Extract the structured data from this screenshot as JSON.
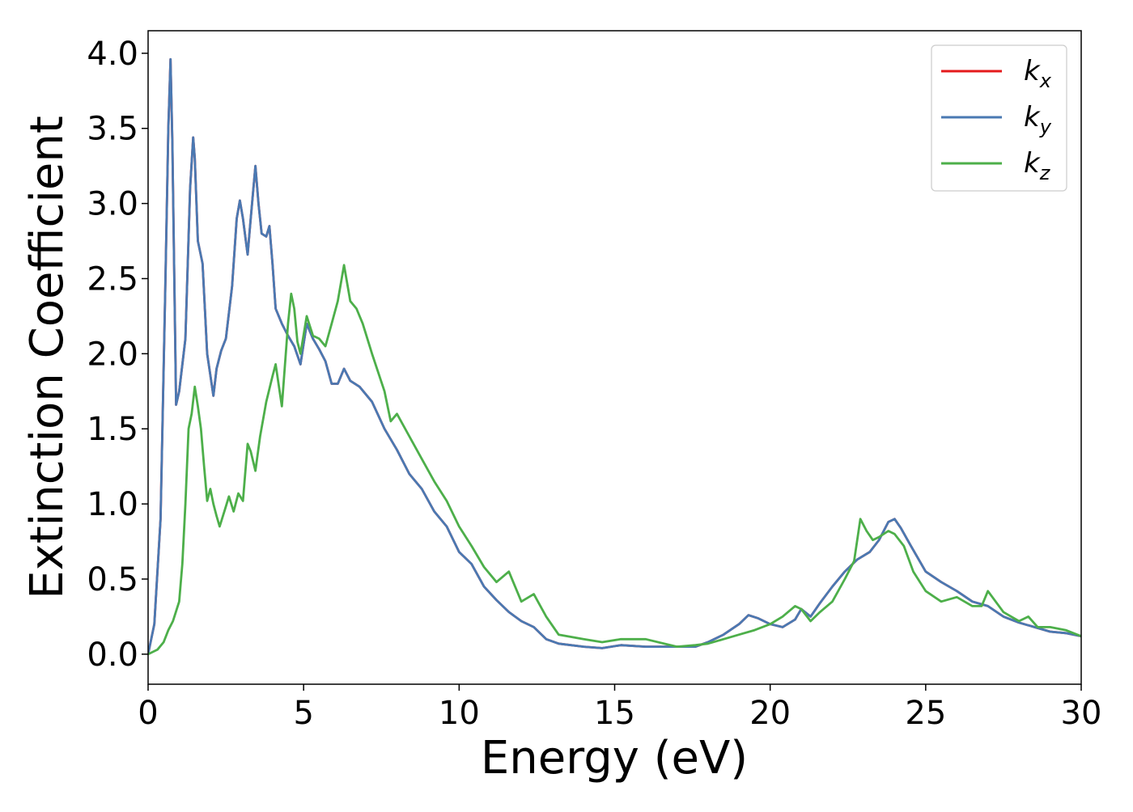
{
  "chart_data": {
    "type": "line",
    "xlabel": "Energy (eV)",
    "ylabel": "Extinction Coefficient",
    "xlim": [
      0,
      30
    ],
    "ylim": [
      -0.2,
      4.15
    ],
    "xticks": [
      0,
      5,
      10,
      15,
      20,
      25,
      30
    ],
    "yticks": [
      0.0,
      0.5,
      1.0,
      1.5,
      2.0,
      2.5,
      3.0,
      3.5,
      4.0
    ],
    "xtick_labels": [
      "0",
      "5",
      "10",
      "15",
      "20",
      "25",
      "30"
    ],
    "ytick_labels": [
      "0.0",
      "0.5",
      "1.0",
      "1.5",
      "2.0",
      "2.5",
      "3.0",
      "3.5",
      "4.0"
    ],
    "grid": false,
    "legend_position": "top-right",
    "series": [
      {
        "name": "k_x",
        "label_main": "k",
        "label_sub": "x",
        "color": "#e41a1c",
        "x": [
          0,
          0.2,
          0.4,
          0.55,
          0.65,
          0.72,
          0.78,
          0.9,
          1.0,
          1.2,
          1.35,
          1.45,
          1.5,
          1.6,
          1.75,
          1.9,
          2.1,
          2.2,
          2.35,
          2.5,
          2.7,
          2.85,
          2.95,
          3.05,
          3.2,
          3.3,
          3.45,
          3.55,
          3.65,
          3.8,
          3.9,
          4.0,
          4.1,
          4.3,
          4.5,
          4.7,
          4.9,
          5.1,
          5.3,
          5.5,
          5.7,
          5.9,
          6.1,
          6.3,
          6.5,
          6.8,
          7.2,
          7.6,
          8.0,
          8.4,
          8.8,
          9.2,
          9.6,
          10.0,
          10.4,
          10.8,
          11.2,
          11.6,
          12.0,
          12.4,
          12.8,
          13.2,
          14.0,
          14.6,
          15.2,
          16.0,
          17.0,
          17.6,
          18.0,
          18.5,
          19.0,
          19.3,
          19.6,
          20.0,
          20.4,
          20.8,
          21.0,
          21.3,
          21.6,
          22.0,
          22.4,
          22.8,
          23.2,
          23.5,
          23.8,
          24.0,
          24.2,
          24.5,
          25.0,
          25.5,
          26.0,
          26.5,
          27.0,
          27.5,
          28.0,
          28.5,
          29.0,
          29.5,
          30.0
        ],
        "y": [
          0.0,
          0.2,
          0.9,
          2.4,
          3.5,
          3.96,
          3.4,
          1.66,
          1.75,
          2.1,
          3.1,
          3.44,
          3.3,
          2.75,
          2.6,
          2.0,
          1.72,
          1.9,
          2.02,
          2.1,
          2.45,
          2.9,
          3.02,
          2.9,
          2.66,
          2.9,
          3.25,
          3.0,
          2.8,
          2.78,
          2.85,
          2.6,
          2.3,
          2.2,
          2.12,
          2.05,
          1.93,
          2.2,
          2.1,
          2.03,
          1.95,
          1.8,
          1.8,
          1.9,
          1.82,
          1.78,
          1.68,
          1.5,
          1.36,
          1.2,
          1.1,
          0.95,
          0.85,
          0.68,
          0.6,
          0.45,
          0.36,
          0.28,
          0.22,
          0.18,
          0.1,
          0.07,
          0.05,
          0.04,
          0.06,
          0.05,
          0.05,
          0.05,
          0.08,
          0.13,
          0.2,
          0.26,
          0.24,
          0.2,
          0.18,
          0.23,
          0.3,
          0.25,
          0.34,
          0.45,
          0.55,
          0.63,
          0.68,
          0.76,
          0.88,
          0.9,
          0.84,
          0.73,
          0.55,
          0.48,
          0.42,
          0.35,
          0.32,
          0.25,
          0.21,
          0.18,
          0.15,
          0.14,
          0.12
        ]
      },
      {
        "name": "k_y",
        "label_main": "k",
        "label_sub": "y",
        "color": "#4a79b2",
        "x": [
          0,
          0.2,
          0.4,
          0.55,
          0.65,
          0.72,
          0.78,
          0.9,
          1.0,
          1.2,
          1.35,
          1.45,
          1.5,
          1.6,
          1.75,
          1.9,
          2.1,
          2.2,
          2.35,
          2.5,
          2.7,
          2.85,
          2.95,
          3.05,
          3.2,
          3.3,
          3.45,
          3.55,
          3.65,
          3.8,
          3.9,
          4.0,
          4.1,
          4.3,
          4.5,
          4.7,
          4.9,
          5.1,
          5.3,
          5.5,
          5.7,
          5.9,
          6.1,
          6.3,
          6.5,
          6.8,
          7.2,
          7.6,
          8.0,
          8.4,
          8.8,
          9.2,
          9.6,
          10.0,
          10.4,
          10.8,
          11.2,
          11.6,
          12.0,
          12.4,
          12.8,
          13.2,
          14.0,
          14.6,
          15.2,
          16.0,
          17.0,
          17.6,
          18.0,
          18.5,
          19.0,
          19.3,
          19.6,
          20.0,
          20.4,
          20.8,
          21.0,
          21.3,
          21.6,
          22.0,
          22.4,
          22.8,
          23.2,
          23.5,
          23.8,
          24.0,
          24.2,
          24.5,
          25.0,
          25.5,
          26.0,
          26.5,
          27.0,
          27.5,
          28.0,
          28.5,
          29.0,
          29.5,
          30.0
        ],
        "y": [
          0.0,
          0.2,
          0.9,
          2.4,
          3.5,
          3.96,
          3.4,
          1.66,
          1.75,
          2.1,
          3.1,
          3.44,
          3.3,
          2.75,
          2.6,
          2.0,
          1.72,
          1.9,
          2.02,
          2.1,
          2.45,
          2.9,
          3.02,
          2.9,
          2.66,
          2.9,
          3.25,
          3.0,
          2.8,
          2.78,
          2.85,
          2.6,
          2.3,
          2.2,
          2.12,
          2.05,
          1.93,
          2.2,
          2.1,
          2.03,
          1.95,
          1.8,
          1.8,
          1.9,
          1.82,
          1.78,
          1.68,
          1.5,
          1.36,
          1.2,
          1.1,
          0.95,
          0.85,
          0.68,
          0.6,
          0.45,
          0.36,
          0.28,
          0.22,
          0.18,
          0.1,
          0.07,
          0.05,
          0.04,
          0.06,
          0.05,
          0.05,
          0.05,
          0.08,
          0.13,
          0.2,
          0.26,
          0.24,
          0.2,
          0.18,
          0.23,
          0.3,
          0.25,
          0.34,
          0.45,
          0.55,
          0.63,
          0.68,
          0.76,
          0.88,
          0.9,
          0.84,
          0.73,
          0.55,
          0.48,
          0.42,
          0.35,
          0.32,
          0.25,
          0.21,
          0.18,
          0.15,
          0.14,
          0.12
        ]
      },
      {
        "name": "k_z",
        "label_main": "k",
        "label_sub": "z",
        "color": "#4daf4a",
        "x": [
          0,
          0.3,
          0.5,
          0.65,
          0.8,
          1.0,
          1.1,
          1.2,
          1.3,
          1.4,
          1.5,
          1.6,
          1.7,
          1.8,
          1.9,
          2.0,
          2.1,
          2.2,
          2.3,
          2.45,
          2.6,
          2.75,
          2.9,
          3.05,
          3.2,
          3.3,
          3.45,
          3.6,
          3.8,
          4.0,
          4.1,
          4.3,
          4.5,
          4.6,
          4.7,
          4.8,
          4.9,
          5.1,
          5.3,
          5.5,
          5.7,
          5.9,
          6.1,
          6.3,
          6.5,
          6.7,
          6.9,
          7.2,
          7.6,
          7.8,
          8.0,
          8.4,
          8.8,
          9.2,
          9.6,
          10.0,
          10.4,
          10.8,
          11.2,
          11.6,
          12.0,
          12.4,
          12.8,
          13.2,
          14.0,
          14.6,
          15.2,
          16.0,
          17.0,
          17.6,
          18.0,
          18.5,
          19.0,
          19.5,
          20.0,
          20.4,
          20.8,
          21.0,
          21.3,
          21.6,
          22.0,
          22.4,
          22.7,
          22.9,
          23.1,
          23.3,
          23.5,
          23.8,
          24.0,
          24.3,
          24.6,
          25.0,
          25.5,
          26.0,
          26.5,
          26.8,
          27.0,
          27.5,
          28.0,
          28.3,
          28.6,
          29.0,
          29.5,
          30.0
        ],
        "y": [
          0.0,
          0.03,
          0.08,
          0.16,
          0.22,
          0.35,
          0.6,
          1.0,
          1.5,
          1.6,
          1.78,
          1.65,
          1.5,
          1.25,
          1.02,
          1.1,
          1.0,
          0.92,
          0.85,
          0.95,
          1.05,
          0.95,
          1.07,
          1.02,
          1.4,
          1.35,
          1.22,
          1.45,
          1.68,
          1.85,
          1.93,
          1.65,
          2.2,
          2.4,
          2.3,
          2.08,
          2.0,
          2.25,
          2.12,
          2.1,
          2.05,
          2.2,
          2.35,
          2.59,
          2.35,
          2.3,
          2.2,
          2.0,
          1.75,
          1.55,
          1.6,
          1.45,
          1.3,
          1.15,
          1.02,
          0.85,
          0.72,
          0.58,
          0.48,
          0.55,
          0.35,
          0.4,
          0.25,
          0.13,
          0.1,
          0.08,
          0.1,
          0.1,
          0.05,
          0.06,
          0.07,
          0.1,
          0.13,
          0.16,
          0.2,
          0.25,
          0.32,
          0.3,
          0.22,
          0.28,
          0.35,
          0.5,
          0.62,
          0.9,
          0.82,
          0.76,
          0.78,
          0.82,
          0.8,
          0.72,
          0.55,
          0.42,
          0.35,
          0.38,
          0.32,
          0.32,
          0.42,
          0.28,
          0.22,
          0.25,
          0.18,
          0.18,
          0.16,
          0.12
        ]
      }
    ]
  }
}
